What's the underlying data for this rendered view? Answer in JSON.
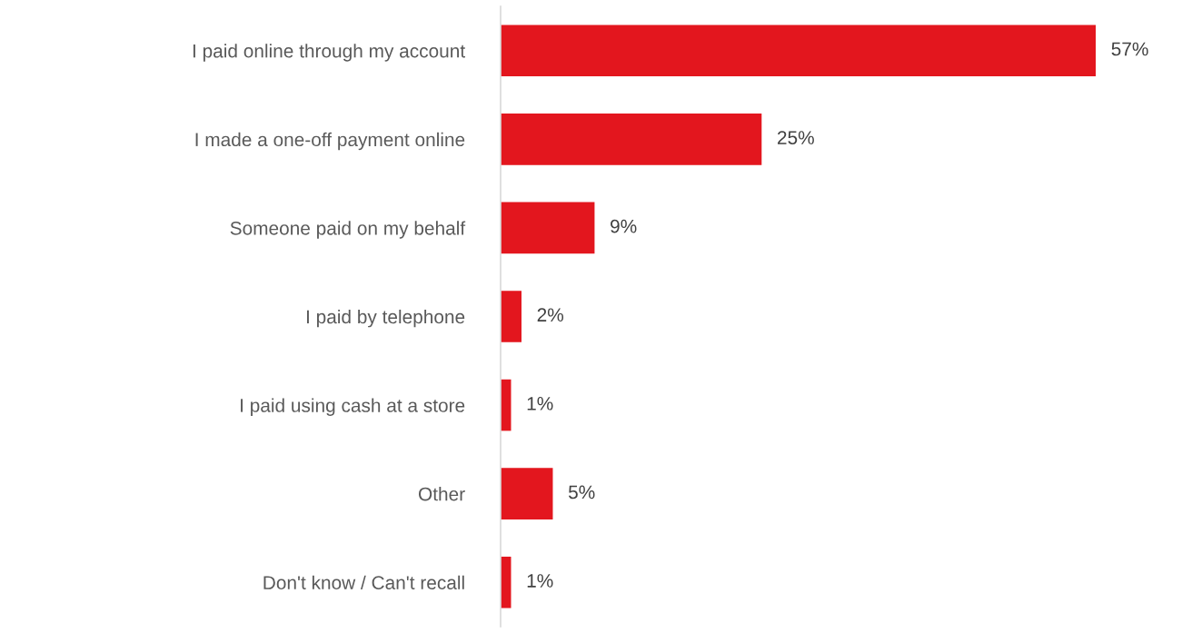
{
  "chart_data": {
    "type": "bar",
    "orientation": "horizontal",
    "categories": [
      "I paid online through my account",
      "I made a one-off payment online",
      "Someone paid on my behalf",
      "I paid by telephone",
      "I paid using cash at a store",
      "Other",
      "Don't know / Can't recall"
    ],
    "values": [
      57,
      25,
      9,
      2,
      1,
      5,
      1
    ],
    "value_labels": [
      "57%",
      "25%",
      "9%",
      "2%",
      "1%",
      "5%",
      "1%"
    ],
    "color": "#e3161e",
    "grid": false,
    "legend": false
  }
}
